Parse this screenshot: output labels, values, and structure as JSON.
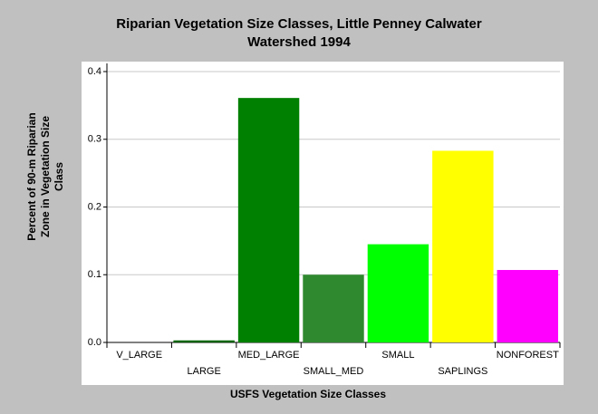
{
  "chart_data": {
    "type": "bar",
    "title": [
      "Riparian Vegetation Size Classes, Little Penney Calwater",
      "Watershed 1994"
    ],
    "xlabel": "USFS Vegetation Size Classes",
    "ylabel": [
      "Percent of 90-m Riparian",
      "Zone in Vegetation Size",
      "Class"
    ],
    "categories": [
      "V_LARGE",
      "LARGE",
      "MED_LARGE",
      "SMALL_MED",
      "SMALL",
      "SAPLINGS",
      "NONFOREST"
    ],
    "values": [
      0,
      0.003,
      0.361,
      0.1,
      0.145,
      0.283,
      0.107
    ],
    "colors": [
      "#006400",
      "#006400",
      "#008000",
      "#2f8a2f",
      "#00ff00",
      "#ffff00",
      "#ff00ff"
    ],
    "ylim": [
      0,
      0.4
    ],
    "yticks": [
      {
        "value": 0,
        "label": "0.0"
      },
      0.1,
      0.2,
      0.3,
      0.4
    ],
    "grid": true
  }
}
